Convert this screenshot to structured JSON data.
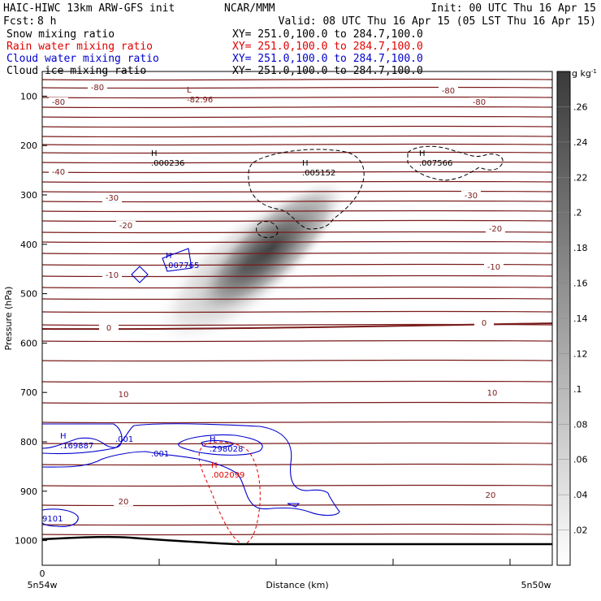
{
  "header": {
    "model": "HAIC-HIWC 13km ARW-GFS init",
    "center": "NCAR/MMM",
    "init": "Init: 00 UTC Thu 16 Apr 15",
    "fcst_label": "Fcst:",
    "fcst_value": "8 h",
    "valid": "Valid: 08 UTC Thu 16 Apr 15 (05 LST Thu 16 Apr 15)",
    "fields": [
      {
        "name": "Snow mixing ratio",
        "xy": "XY= 251.0,100.0 to 284.7,100.0",
        "color": "#000000"
      },
      {
        "name": "Rain water mixing ratio",
        "xy": "XY= 251.0,100.0 to 284.7,100.0",
        "color": "#e00000"
      },
      {
        "name": "Cloud water mixing ratio",
        "xy": "XY= 251.0,100.0 to 284.7,100.0",
        "color": "#0000cc"
      },
      {
        "name": "Cloud ice mixing ratio",
        "xy": "XY= 251.0,100.0 to 284.7,100.0",
        "color": "#000000"
      }
    ]
  },
  "chart_data": {
    "type": "heatmap",
    "xlabel": "Distance (km)",
    "ylabel": "Pressure (hPa)",
    "ylim": [
      1050,
      50
    ],
    "x_ticks": [
      "0"
    ],
    "x_endpoints": [
      "5n54w",
      "5n50w"
    ],
    "y_ticks": [
      100,
      200,
      300,
      400,
      500,
      600,
      700,
      800,
      900,
      1000
    ],
    "colorbar": {
      "unit": "g kg",
      "unit_sup": "-1",
      "levels": [
        0.02,
        0.04,
        0.06,
        0.08,
        0.1,
        0.12,
        0.14,
        0.16,
        0.18,
        0.2,
        0.22,
        0.24,
        0.26
      ],
      "labels": [
        ".02",
        ".04",
        ".06",
        ".08",
        ".1",
        ".12",
        ".14",
        ".16",
        ".18",
        ".2",
        ".22",
        ".24",
        ".26"
      ]
    },
    "temperature_labels": [
      {
        "text": "-80"
      },
      {
        "text": "-80"
      },
      {
        "text": "-80"
      },
      {
        "text": "-80"
      },
      {
        "text": "-40"
      },
      {
        "text": "-30"
      },
      {
        "text": "-30"
      },
      {
        "text": "-20"
      },
      {
        "text": "-20"
      },
      {
        "text": "-10"
      },
      {
        "text": "-10"
      },
      {
        "text": "0"
      },
      {
        "text": "0"
      },
      {
        "text": "10"
      },
      {
        "text": "10"
      },
      {
        "text": "20"
      },
      {
        "text": "20"
      }
    ],
    "extrema": [
      {
        "kind": "L",
        "value": "-82.96",
        "color": "#7a1a1a"
      },
      {
        "kind": "H",
        "value": ".000236",
        "color": "#000000"
      },
      {
        "kind": "H",
        "value": ".005152",
        "color": "#000000"
      },
      {
        "kind": "H",
        "value": ".007566",
        "color": "#000000"
      },
      {
        "kind": "H",
        "value": ".007765",
        "color": "#0000cc"
      },
      {
        "kind": "H",
        "value": ".169887",
        "color": "#0000cc"
      },
      {
        "kind": "H",
        "value": ".298028",
        "color": "#0000cc"
      },
      {
        "kind": "H",
        "value": ".002099",
        "color": "#e00000"
      }
    ],
    "cloud_water_labels": [
      ".001",
      ".001",
      "9101"
    ]
  }
}
